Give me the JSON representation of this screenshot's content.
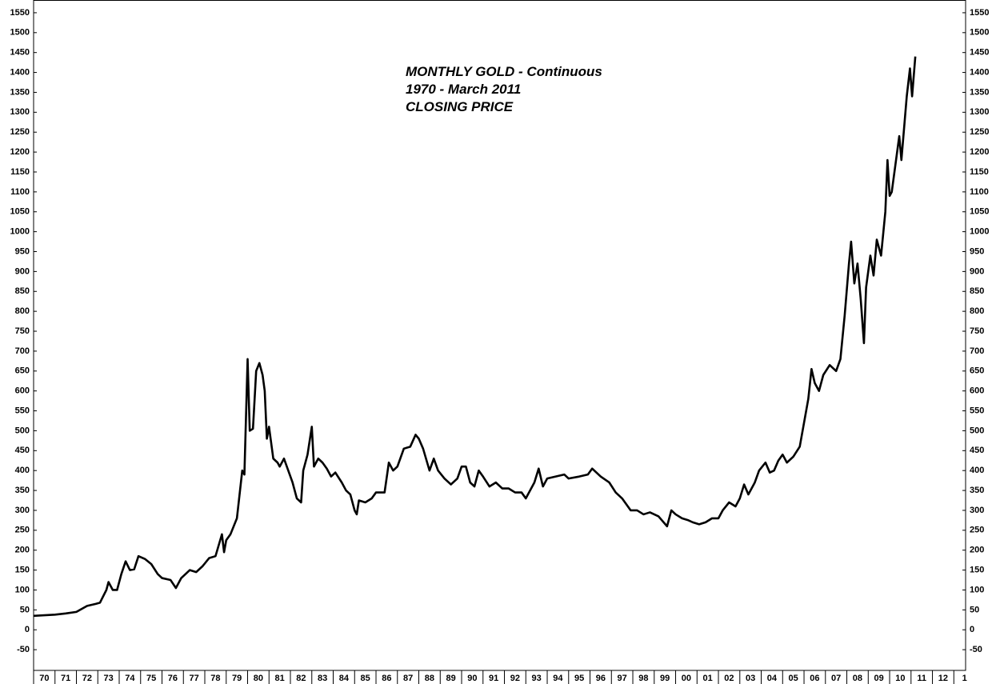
{
  "chart_data": {
    "type": "line",
    "title": [
      "MONTHLY GOLD - Continuous",
      "1970 - March 2011",
      "CLOSING PRICE"
    ],
    "ylim": [
      -102,
      1582
    ],
    "yticks": [
      -50,
      0,
      50,
      100,
      150,
      200,
      250,
      300,
      350,
      400,
      450,
      500,
      550,
      600,
      650,
      700,
      750,
      800,
      850,
      900,
      950,
      1000,
      1050,
      1100,
      1150,
      1200,
      1250,
      1300,
      1350,
      1400,
      1450,
      1500,
      1550
    ],
    "xlim": [
      1970,
      2013.55
    ],
    "xticks": [
      {
        "value": 1970,
        "label": "70"
      },
      {
        "value": 1971,
        "label": "71"
      },
      {
        "value": 1972,
        "label": "72"
      },
      {
        "value": 1973,
        "label": "73"
      },
      {
        "value": 1974,
        "label": "74"
      },
      {
        "value": 1975,
        "label": "75"
      },
      {
        "value": 1976,
        "label": "76"
      },
      {
        "value": 1977,
        "label": "77"
      },
      {
        "value": 1978,
        "label": "78"
      },
      {
        "value": 1979,
        "label": "79"
      },
      {
        "value": 1980,
        "label": "80"
      },
      {
        "value": 1981,
        "label": "81"
      },
      {
        "value": 1982,
        "label": "82"
      },
      {
        "value": 1983,
        "label": "83"
      },
      {
        "value": 1984,
        "label": "84"
      },
      {
        "value": 1985,
        "label": "85"
      },
      {
        "value": 1986,
        "label": "86"
      },
      {
        "value": 1987,
        "label": "87"
      },
      {
        "value": 1988,
        "label": "88"
      },
      {
        "value": 1989,
        "label": "89"
      },
      {
        "value": 1990,
        "label": "90"
      },
      {
        "value": 1991,
        "label": "91"
      },
      {
        "value": 1992,
        "label": "92"
      },
      {
        "value": 1993,
        "label": "93"
      },
      {
        "value": 1994,
        "label": "94"
      },
      {
        "value": 1995,
        "label": "95"
      },
      {
        "value": 1996,
        "label": "96"
      },
      {
        "value": 1997,
        "label": "97"
      },
      {
        "value": 1998,
        "label": "98"
      },
      {
        "value": 1999,
        "label": "99"
      },
      {
        "value": 2000,
        "label": "00"
      },
      {
        "value": 2001,
        "label": "01"
      },
      {
        "value": 2002,
        "label": "02"
      },
      {
        "value": 2003,
        "label": "03"
      },
      {
        "value": 2004,
        "label": "04"
      },
      {
        "value": 2005,
        "label": "05"
      },
      {
        "value": 2006,
        "label": "06"
      },
      {
        "value": 2007,
        "label": "07"
      },
      {
        "value": 2008,
        "label": "08"
      },
      {
        "value": 2009,
        "label": "09"
      },
      {
        "value": 2010,
        "label": "10"
      },
      {
        "value": 2011,
        "label": "11"
      },
      {
        "value": 2012,
        "label": "12"
      },
      {
        "value": 2013,
        "label": "1"
      }
    ],
    "color": "#000000",
    "x": [
      1970.0,
      1971.0,
      1971.5,
      1972.0,
      1972.5,
      1972.9,
      1973.1,
      1973.4,
      1973.5,
      1973.7,
      1973.9,
      1974.1,
      1974.3,
      1974.5,
      1974.7,
      1974.9,
      1975.2,
      1975.5,
      1975.8,
      1976.0,
      1976.4,
      1976.65,
      1976.9,
      1977.3,
      1977.6,
      1977.9,
      1978.2,
      1978.5,
      1978.8,
      1978.9,
      1979.0,
      1979.2,
      1979.5,
      1979.75,
      1979.85,
      1980.0,
      1980.1,
      1980.25,
      1980.4,
      1980.55,
      1980.7,
      1980.8,
      1980.9,
      1981.0,
      1981.2,
      1981.4,
      1981.5,
      1981.7,
      1981.9,
      1982.1,
      1982.3,
      1982.5,
      1982.6,
      1982.8,
      1983.0,
      1983.1,
      1983.3,
      1983.5,
      1983.7,
      1983.9,
      1984.1,
      1984.4,
      1984.6,
      1984.8,
      1985.0,
      1985.1,
      1985.2,
      1985.5,
      1985.8,
      1986.0,
      1986.4,
      1986.6,
      1986.8,
      1987.0,
      1987.3,
      1987.6,
      1987.85,
      1988.0,
      1988.2,
      1988.5,
      1988.7,
      1988.9,
      1989.2,
      1989.5,
      1989.8,
      1990.0,
      1990.2,
      1990.4,
      1990.6,
      1990.8,
      1991.0,
      1991.3,
      1991.6,
      1991.9,
      1992.2,
      1992.5,
      1992.8,
      1993.0,
      1993.4,
      1993.6,
      1993.8,
      1994.0,
      1994.4,
      1994.8,
      1995.0,
      1995.5,
      1995.9,
      1996.1,
      1996.5,
      1996.9,
      1997.2,
      1997.5,
      1997.9,
      1998.2,
      1998.5,
      1998.8,
      1999.2,
      1999.6,
      1999.8,
      2000.0,
      2000.3,
      2000.6,
      2000.8,
      2001.1,
      2001.4,
      2001.7,
      2002.0,
      2002.2,
      2002.5,
      2002.8,
      2003.0,
      2003.2,
      2003.4,
      2003.7,
      2003.9,
      2004.2,
      2004.4,
      2004.6,
      2004.8,
      2005.0,
      2005.2,
      2005.5,
      2005.8,
      2006.0,
      2006.2,
      2006.35,
      2006.5,
      2006.7,
      2006.9,
      2007.2,
      2007.5,
      2007.7,
      2007.9,
      2008.1,
      2008.2,
      2008.35,
      2008.5,
      2008.65,
      2008.8,
      2008.9,
      2009.1,
      2009.25,
      2009.4,
      2009.6,
      2009.8,
      2009.9,
      2010.0,
      2010.1,
      2010.3,
      2010.45,
      2010.55,
      2010.8,
      2010.95,
      2011.05,
      2011.2
    ],
    "values": [
      35,
      38,
      41,
      45,
      60,
      65,
      68,
      100,
      120,
      100,
      100,
      140,
      172,
      150,
      152,
      185,
      178,
      165,
      140,
      130,
      125,
      105,
      130,
      150,
      145,
      160,
      180,
      185,
      240,
      195,
      225,
      240,
      280,
      400,
      390,
      680,
      500,
      505,
      650,
      670,
      640,
      600,
      480,
      510,
      430,
      420,
      410,
      430,
      400,
      370,
      330,
      320,
      400,
      440,
      510,
      410,
      430,
      420,
      405,
      385,
      395,
      370,
      350,
      340,
      300,
      290,
      325,
      320,
      330,
      345,
      345,
      420,
      400,
      410,
      455,
      460,
      490,
      480,
      455,
      400,
      430,
      400,
      380,
      365,
      380,
      410,
      410,
      370,
      360,
      400,
      385,
      360,
      370,
      355,
      355,
      345,
      345,
      330,
      370,
      405,
      360,
      380,
      385,
      390,
      380,
      385,
      390,
      405,
      385,
      370,
      345,
      330,
      300,
      300,
      290,
      295,
      285,
      260,
      300,
      290,
      280,
      275,
      270,
      265,
      270,
      280,
      280,
      300,
      320,
      310,
      330,
      365,
      340,
      370,
      400,
      420,
      395,
      400,
      425,
      440,
      420,
      435,
      460,
      520,
      580,
      655,
      620,
      600,
      640,
      665,
      650,
      680,
      790,
      920,
      975,
      870,
      920,
      830,
      720,
      860,
      940,
      890,
      980,
      940,
      1050,
      1180,
      1090,
      1100,
      1180,
      1240,
      1180,
      1340,
      1410,
      1340,
      1440
    ]
  }
}
